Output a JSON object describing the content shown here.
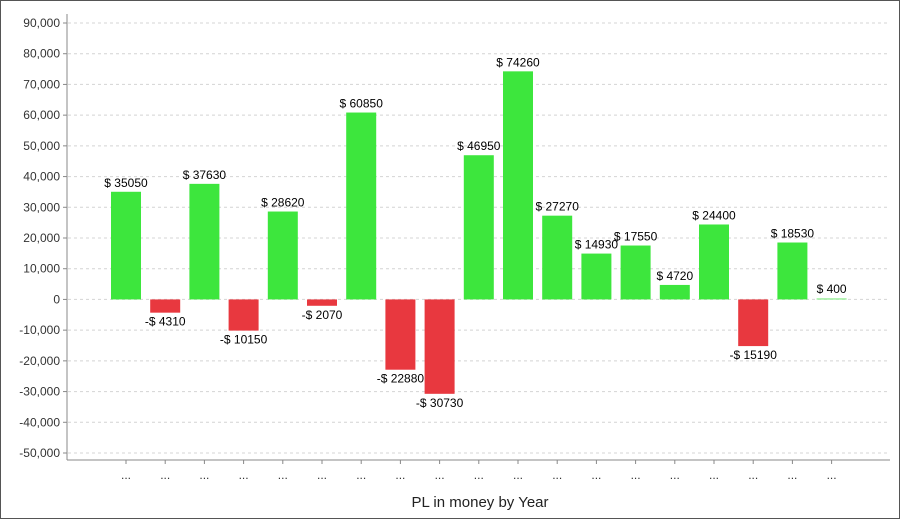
{
  "chart_data": {
    "type": "bar",
    "title": "",
    "xlabel": "PL in money by Year",
    "ylabel": "",
    "ylim": [
      -50000,
      90000
    ],
    "yticks": [
      90000,
      80000,
      70000,
      60000,
      50000,
      40000,
      30000,
      20000,
      10000,
      0,
      -10000,
      -20000,
      -30000,
      -40000,
      -50000
    ],
    "ytick_labels": [
      "90,000",
      "80,000",
      "70,000",
      "60,000",
      "50,000",
      "40,000",
      "30,000",
      "20,000",
      "10,000",
      "0",
      "-10,000",
      "-20,000",
      "-30,000",
      "-40,000",
      "-50,000"
    ],
    "grid": true,
    "categories": [
      "...",
      "...",
      "...",
      "...",
      "...",
      "...",
      "...",
      "...",
      "...",
      "...",
      "...",
      "...",
      "...",
      "...",
      "...",
      "...",
      "...",
      "...",
      "..."
    ],
    "values": [
      35050,
      -4310,
      37630,
      -10150,
      28620,
      -2070,
      60850,
      -22880,
      -30730,
      46950,
      74260,
      27270,
      14930,
      17550,
      4720,
      24400,
      -15190,
      18530,
      400
    ],
    "data_labels": [
      "$ 35050",
      "-$ 4310",
      "$ 37630",
      "-$ 10150",
      "$ 28620",
      "-$ 2070",
      "$ 60850",
      "-$ 22880",
      "-$ 30730",
      "$ 46950",
      "$ 74260",
      "$ 27270",
      "$ 14930",
      "$ 17550",
      "$ 4720",
      "$ 24400",
      "-$ 15190",
      "$ 18530",
      "$ 400"
    ],
    "colors": {
      "positive": "#3de63d",
      "negative": "#e8383f",
      "small_positive": "#9ff09f"
    }
  }
}
